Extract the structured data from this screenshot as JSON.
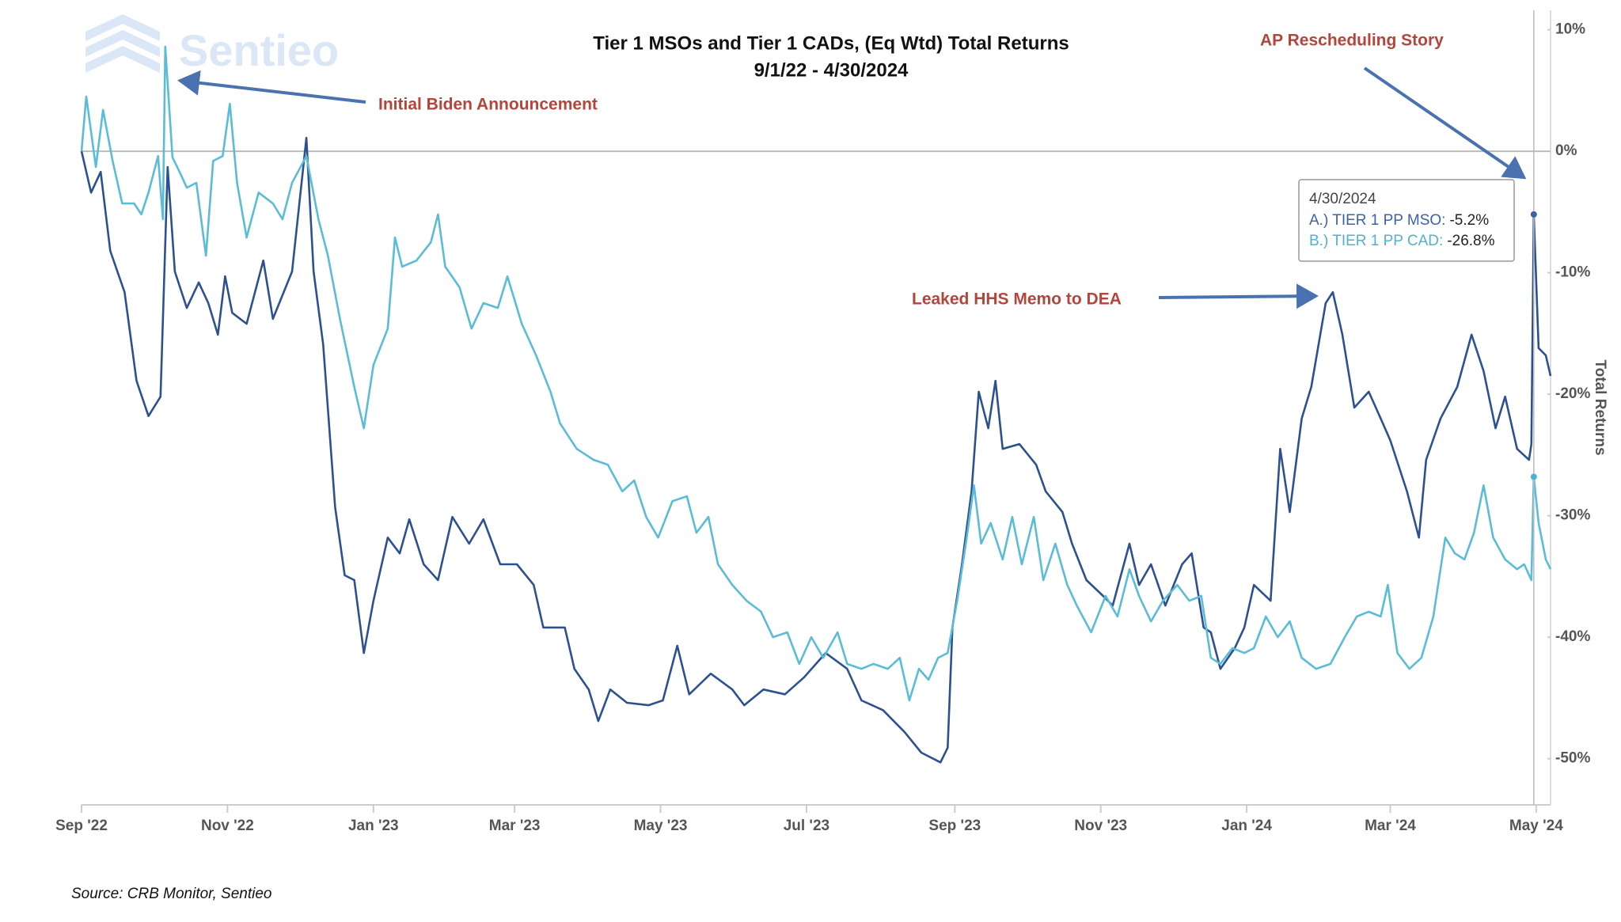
{
  "chart_data": {
    "type": "line",
    "title": "Tier 1 MSOs and Tier 1 CADs, (Eq Wtd) Total Returns",
    "subtitle": "9/1/22 - 4/30/2024",
    "y_label": "Total Returns",
    "source": "Source: CRB Monitor, Sentieo",
    "watermark": "Sentieo",
    "annotations": [
      "Initial Biden Announcement",
      "AP Rescheduling Story",
      "Leaked HHS Memo to DEA"
    ],
    "xlim": [
      "2022-09-01",
      "2024-05-07"
    ],
    "ylim": [
      -53.8,
      11.6
    ],
    "xticks": [
      {
        "value": "2022-09-01",
        "label": "Sep '22"
      },
      {
        "value": "2022-11-01",
        "label": "Nov '22"
      },
      {
        "value": "2023-01-01",
        "label": "Jan '23"
      },
      {
        "value": "2023-03-01",
        "label": "Mar '23"
      },
      {
        "value": "2023-05-01",
        "label": "May '23"
      },
      {
        "value": "2023-07-01",
        "label": "Jul '23"
      },
      {
        "value": "2023-09-01",
        "label": "Sep '23"
      },
      {
        "value": "2023-11-01",
        "label": "Nov '23"
      },
      {
        "value": "2024-01-01",
        "label": "Jan '24"
      },
      {
        "value": "2024-03-01",
        "label": "Mar '24"
      },
      {
        "value": "2024-05-01",
        "label": "May '24"
      }
    ],
    "yticks": [
      {
        "value": 10,
        "label": "10%"
      },
      {
        "value": 0,
        "label": "0%"
      },
      {
        "value": -10,
        "label": "-10%"
      },
      {
        "value": -20,
        "label": "-20%"
      },
      {
        "value": -30,
        "label": "-30%"
      },
      {
        "value": -40,
        "label": "-40%"
      },
      {
        "value": -50,
        "label": "-50%"
      }
    ],
    "tooltip": {
      "x": "4/30/2024",
      "rows": [
        {
          "label": "A.) TIER 1 PP MSO:",
          "value": -5.2,
          "value_label": "-5.2%",
          "color": "#3b63a8"
        },
        {
          "label": "B.) TIER 1 PP CAD:",
          "value": -26.8,
          "value_label": "-26.8%",
          "color": "#4db3d2"
        }
      ]
    },
    "series": [
      {
        "color": "#2d5190",
        "x": [
          "2022-09-01",
          "2022-09-05",
          "2022-09-09",
          "2022-09-13",
          "2022-09-19",
          "2022-09-24",
          "2022-09-29",
          "2022-10-04",
          "2022-10-07",
          "2022-10-10",
          "2022-10-15",
          "2022-10-20",
          "2022-10-24",
          "2022-10-28",
          "2022-10-31",
          "2022-11-03",
          "2022-11-09",
          "2022-11-16",
          "2022-11-20",
          "2022-11-28",
          "2022-12-04",
          "2022-12-07",
          "2022-12-11",
          "2022-12-16",
          "2022-12-20",
          "2022-12-24",
          "2022-12-28",
          "2023-01-01",
          "2023-01-07",
          "2023-01-12",
          "2023-01-16",
          "2023-01-22",
          "2023-01-28",
          "2023-02-03",
          "2023-02-10",
          "2023-02-16",
          "2023-02-23",
          "2023-03-02",
          "2023-03-09",
          "2023-03-13",
          "2023-03-22",
          "2023-03-26",
          "2023-04-01",
          "2023-04-05",
          "2023-04-10",
          "2023-04-17",
          "2023-04-26",
          "2023-05-02",
          "2023-05-08",
          "2023-05-13",
          "2023-05-22",
          "2023-05-31",
          "2023-06-05",
          "2023-06-13",
          "2023-06-22",
          "2023-06-30",
          "2023-07-09",
          "2023-07-18",
          "2023-07-24",
          "2023-08-02",
          "2023-08-11",
          "2023-08-18",
          "2023-08-26",
          "2023-08-29",
          "2023-08-31",
          "2023-09-04",
          "2023-09-08",
          "2023-09-11",
          "2023-09-15",
          "2023-09-18",
          "2023-09-21",
          "2023-09-28",
          "2023-10-05",
          "2023-10-09",
          "2023-10-16",
          "2023-10-20",
          "2023-10-26",
          "2023-11-02",
          "2023-11-06",
          "2023-11-13",
          "2023-11-17",
          "2023-11-22",
          "2023-11-28",
          "2023-12-05",
          "2023-12-09",
          "2023-12-14",
          "2023-12-17",
          "2023-12-21",
          "2023-12-27",
          "2023-12-31",
          "2024-01-04",
          "2024-01-11",
          "2024-01-15",
          "2024-01-19",
          "2024-01-24",
          "2024-01-28",
          "2024-02-03",
          "2024-02-06",
          "2024-02-10",
          "2024-02-15",
          "2024-02-21",
          "2024-02-26",
          "2024-03-01",
          "2024-03-08",
          "2024-03-13",
          "2024-03-16",
          "2024-03-22",
          "2024-03-29",
          "2024-04-04",
          "2024-04-09",
          "2024-04-14",
          "2024-04-18",
          "2024-04-23",
          "2024-04-28",
          "2024-04-29",
          "2024-04-30",
          "2024-05-02",
          "2024-05-05",
          "2024-05-07"
        ],
        "values": [
          0,
          -3.4,
          -1.7,
          -8.2,
          -11.6,
          -18.9,
          -21.8,
          -20.2,
          -1.3,
          -9.9,
          -12.9,
          -10.8,
          -12.5,
          -15.1,
          -10.3,
          -13.3,
          -14.2,
          -9.0,
          -13.8,
          -9.9,
          1.1,
          -9.9,
          -15.9,
          -29.3,
          -34.9,
          -35.3,
          -41.3,
          -37.0,
          -31.8,
          -33.1,
          -30.3,
          -34.0,
          -35.3,
          -30.1,
          -32.3,
          -30.3,
          -34.0,
          -34.0,
          -35.7,
          -39.2,
          -39.2,
          -42.6,
          -44.3,
          -46.9,
          -44.3,
          -45.4,
          -45.6,
          -45.2,
          -40.7,
          -44.7,
          -43.0,
          -44.3,
          -45.6,
          -44.3,
          -44.7,
          -43.3,
          -41.3,
          -42.6,
          -45.2,
          -46.0,
          -47.8,
          -49.5,
          -50.3,
          -49.1,
          -39.2,
          -34.0,
          -28.0,
          -19.8,
          -22.8,
          -18.9,
          -24.5,
          -24.1,
          -25.8,
          -28.0,
          -29.7,
          -32.3,
          -35.3,
          -36.6,
          -37.4,
          -32.3,
          -35.7,
          -34.0,
          -37.4,
          -34.0,
          -33.1,
          -39.2,
          -39.6,
          -42.6,
          -40.9,
          -39.2,
          -35.7,
          -37.0,
          -24.5,
          -29.7,
          -22.0,
          -19.4,
          -12.5,
          -11.6,
          -15.1,
          -21.1,
          -19.8,
          -22.0,
          -23.8,
          -28.0,
          -31.8,
          -25.4,
          -22.0,
          -19.4,
          -15.1,
          -18.1,
          -22.8,
          -20.2,
          -24.5,
          -25.4,
          -24.1,
          -5.2,
          -16.2,
          -16.8,
          -18.5
        ]
      },
      {
        "color": "#5bbcd8",
        "x": [
          "2022-09-01",
          "2022-09-03",
          "2022-09-07",
          "2022-09-10",
          "2022-09-14",
          "2022-09-18",
          "2022-09-23",
          "2022-09-26",
          "2022-09-29",
          "2022-10-03",
          "2022-10-05",
          "2022-10-06",
          "2022-10-09",
          "2022-10-12",
          "2022-10-15",
          "2022-10-19",
          "2022-10-23",
          "2022-10-26",
          "2022-10-30",
          "2022-11-02",
          "2022-11-05",
          "2022-11-09",
          "2022-11-14",
          "2022-11-20",
          "2022-11-24",
          "2022-11-28",
          "2022-12-04",
          "2022-12-09",
          "2022-12-13",
          "2022-12-18",
          "2022-12-24",
          "2022-12-28",
          "2023-01-01",
          "2023-01-07",
          "2023-01-10",
          "2023-01-13",
          "2023-01-19",
          "2023-01-25",
          "2023-01-28",
          "2023-01-31",
          "2023-02-06",
          "2023-02-11",
          "2023-02-16",
          "2023-02-22",
          "2023-02-26",
          "2023-03-04",
          "2023-03-10",
          "2023-03-16",
          "2023-03-20",
          "2023-03-27",
          "2023-04-03",
          "2023-04-09",
          "2023-04-15",
          "2023-04-20",
          "2023-04-25",
          "2023-04-30",
          "2023-05-06",
          "2023-05-12",
          "2023-05-16",
          "2023-05-21",
          "2023-05-25",
          "2023-05-31",
          "2023-06-06",
          "2023-06-12",
          "2023-06-17",
          "2023-06-23",
          "2023-06-28",
          "2023-07-03",
          "2023-07-08",
          "2023-07-14",
          "2023-07-18",
          "2023-07-24",
          "2023-07-29",
          "2023-08-04",
          "2023-08-09",
          "2023-08-13",
          "2023-08-17",
          "2023-08-21",
          "2023-08-25",
          "2023-08-29",
          "2023-09-02",
          "2023-09-06",
          "2023-09-09",
          "2023-09-12",
          "2023-09-16",
          "2023-09-21",
          "2023-09-25",
          "2023-09-29",
          "2023-10-04",
          "2023-10-08",
          "2023-10-13",
          "2023-10-18",
          "2023-10-22",
          "2023-10-28",
          "2023-11-03",
          "2023-11-08",
          "2023-11-13",
          "2023-11-17",
          "2023-11-22",
          "2023-11-27",
          "2023-12-03",
          "2023-12-08",
          "2023-12-13",
          "2023-12-17",
          "2023-12-21",
          "2023-12-26",
          "2023-12-31",
          "2024-01-04",
          "2024-01-09",
          "2024-01-14",
          "2024-01-19",
          "2024-01-24",
          "2024-01-30",
          "2024-02-05",
          "2024-02-11",
          "2024-02-16",
          "2024-02-21",
          "2024-02-26",
          "2024-02-29",
          "2024-03-04",
          "2024-03-09",
          "2024-03-14",
          "2024-03-19",
          "2024-03-24",
          "2024-03-28",
          "2024-04-01",
          "2024-04-05",
          "2024-04-09",
          "2024-04-13",
          "2024-04-18",
          "2024-04-23",
          "2024-04-26",
          "2024-04-29",
          "2024-04-30",
          "2024-05-02",
          "2024-05-05",
          "2024-05-07"
        ],
        "values": [
          0,
          4.5,
          -1.3,
          3.4,
          -0.8,
          -4.3,
          -4.3,
          -5.2,
          -3.4,
          -0.4,
          -5.6,
          8.6,
          -0.5,
          -1.7,
          -3.0,
          -2.6,
          -8.6,
          -0.8,
          -0.4,
          3.9,
          -2.6,
          -7.1,
          -3.4,
          -4.3,
          -5.6,
          -2.6,
          -0.4,
          -5.6,
          -8.6,
          -13.8,
          -19.4,
          -22.8,
          -17.6,
          -14.6,
          -7.1,
          -9.5,
          -9.0,
          -7.5,
          -5.2,
          -9.5,
          -11.2,
          -14.6,
          -12.5,
          -12.9,
          -10.3,
          -14.2,
          -16.8,
          -19.8,
          -22.4,
          -24.5,
          -25.4,
          -25.8,
          -28.0,
          -27.1,
          -30.1,
          -31.8,
          -28.8,
          -28.4,
          -31.4,
          -30.1,
          -34.0,
          -35.7,
          -37.0,
          -37.9,
          -40.0,
          -39.6,
          -42.2,
          -40.0,
          -41.7,
          -39.6,
          -42.2,
          -42.6,
          -42.2,
          -42.6,
          -41.7,
          -45.2,
          -42.6,
          -43.5,
          -41.7,
          -41.3,
          -37.0,
          -31.8,
          -27.5,
          -32.3,
          -30.6,
          -33.6,
          -30.1,
          -34.0,
          -30.1,
          -35.3,
          -32.3,
          -35.7,
          -37.4,
          -39.6,
          -36.6,
          -38.3,
          -34.4,
          -36.6,
          -38.7,
          -37.0,
          -35.7,
          -37.0,
          -36.6,
          -41.7,
          -42.2,
          -40.9,
          -41.3,
          -40.9,
          -38.3,
          -40.0,
          -38.7,
          -41.7,
          -42.6,
          -42.2,
          -40.0,
          -38.3,
          -37.9,
          -38.3,
          -35.7,
          -41.3,
          -42.6,
          -41.7,
          -38.3,
          -31.8,
          -33.1,
          -33.6,
          -31.4,
          -27.5,
          -31.8,
          -33.6,
          -34.4,
          -34.0,
          -35.3,
          -26.8,
          -30.6,
          -33.6,
          -34.4
        ]
      }
    ]
  }
}
